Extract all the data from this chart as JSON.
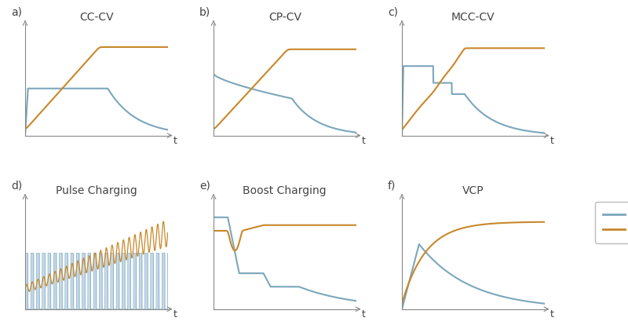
{
  "color_current": "#7ba7bc",
  "color_voltage": "#c8882a",
  "color_pulse_fill": "#c5d8e8",
  "bg_color": "#ffffff",
  "panels": [
    {
      "label": "a)",
      "title": "CC-CV"
    },
    {
      "label": "b)",
      "title": "CP-CV"
    },
    {
      "label": "c)",
      "title": "MCC-CV"
    },
    {
      "label": "d)",
      "title": "Pulse Charging"
    },
    {
      "label": "e)",
      "title": "Boost Charging"
    },
    {
      "label": "f)",
      "title": "VCP"
    }
  ],
  "font_size_title": 10,
  "spine_color": "#888888",
  "text_color": "#444444"
}
